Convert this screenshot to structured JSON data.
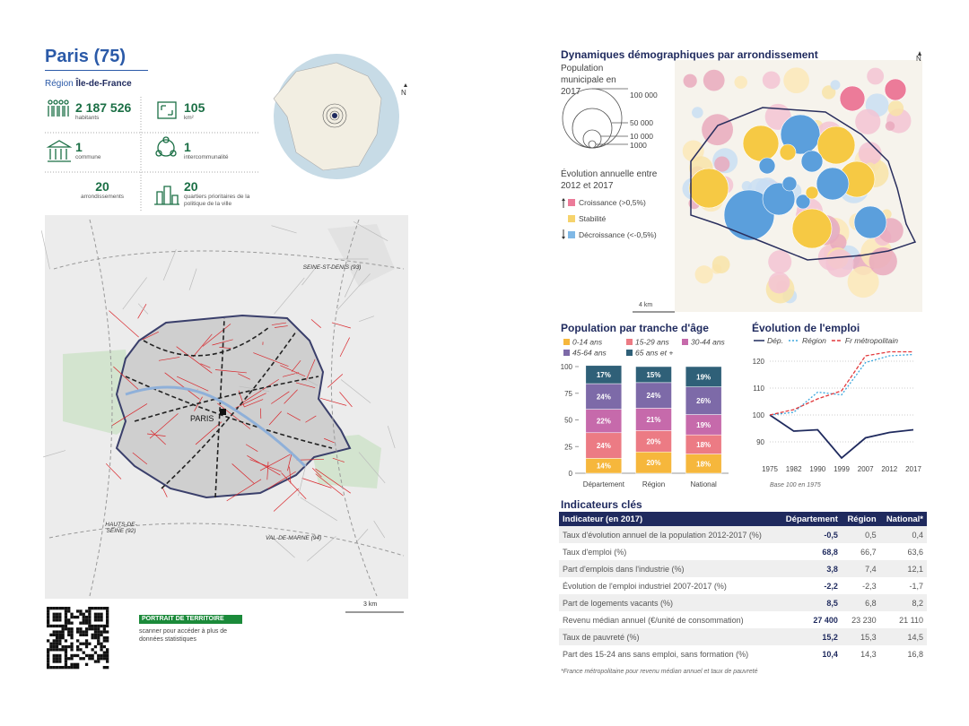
{
  "header": {
    "title": "Paris (75)",
    "region_label": "Région",
    "region": "Île-de-France"
  },
  "stats": [
    {
      "value": "2 187 526",
      "label": "habitants"
    },
    {
      "value": "105",
      "label": "km²"
    },
    {
      "value": "1",
      "label": "commune"
    },
    {
      "value": "1",
      "label": "intercommunalité"
    },
    {
      "value": "20",
      "label": "arrondissements"
    },
    {
      "value": "20",
      "label": "quartiers prioritaires de la politique de la ville"
    }
  ],
  "north": "N",
  "map": {
    "labels": [
      "SEINE-ST-DENIS (93)",
      "PARIS",
      "HAUTS-DE-SEINE (92)",
      "VAL-DE-MARNE (94)"
    ],
    "scale": "3 km"
  },
  "footer": {
    "badge": "PORTRAIT DE TERRITOIRE",
    "text": "scanner pour accéder à plus de données statistiques"
  },
  "demo_map": {
    "title": "Dynamiques démographiques par arrondissement",
    "size_title": "Population municipale en 2017",
    "sizes": [
      "100 000",
      "50 000",
      "10 000",
      "1000"
    ],
    "color_title": "Évolution annuelle entre 2012 et 2017",
    "colors": [
      "Croissance (>0,5%)",
      "Stabilité",
      "Décroissance (<-0,5%)"
    ],
    "scale": "4 km",
    "north": "N"
  },
  "chart_data": [
    {
      "type": "stacked_bar",
      "title": "Population par tranche d'âge",
      "categories": [
        "Département",
        "Région",
        "National"
      ],
      "series": [
        {
          "name": "0-14 ans",
          "color": "#f6b73c",
          "values": [
            14,
            20,
            18
          ],
          "value_labels": [
            "14%",
            "20%",
            "18%"
          ]
        },
        {
          "name": "15-29 ans",
          "color": "#ec7b84",
          "values": [
            24,
            20,
            18
          ],
          "value_labels": [
            "24%",
            "20%",
            "18%"
          ]
        },
        {
          "name": "30-44 ans",
          "color": "#c66aab",
          "values": [
            22,
            21,
            19
          ],
          "value_labels": [
            "22%",
            "21%",
            "19%"
          ]
        },
        {
          "name": "45-64 ans",
          "color": "#7d6aa8",
          "values": [
            24,
            24,
            26
          ],
          "value_labels": [
            "24%",
            "24%",
            "26%"
          ]
        },
        {
          "name": "65 ans et +",
          "color": "#2f6078",
          "values": [
            17,
            15,
            19
          ],
          "value_labels": [
            "17%",
            "15%",
            "19%"
          ]
        }
      ],
      "ylim": [
        0,
        100
      ],
      "yticks": [
        0,
        25,
        50,
        75,
        100
      ]
    },
    {
      "type": "line",
      "title": "Évolution de l'emploi",
      "categories": [
        "1975",
        "1982",
        "1990",
        "1999",
        "2007",
        "2012",
        "2017"
      ],
      "series": [
        {
          "name": "Dép.",
          "color": "#1f2a5e",
          "style": "solid",
          "values": [
            100,
            94,
            94.5,
            84,
            91.5,
            93.5,
            94.5
          ]
        },
        {
          "name": "Région",
          "color": "#3aa6dd",
          "style": "dotted",
          "values": [
            100,
            101,
            108.5,
            107.5,
            119.5,
            122,
            122.5
          ]
        },
        {
          "name": "Fr métropolitain",
          "color": "#e2393c",
          "style": "dashed",
          "values": [
            100,
            102,
            106,
            109,
            122,
            123.5,
            123.5
          ]
        }
      ],
      "ylim": [
        80,
        124
      ],
      "yticks": [
        90,
        100,
        110,
        120
      ],
      "grid": true,
      "note": "Base 100 en 1975"
    }
  ],
  "table": {
    "title": "Indicateurs clés",
    "header": [
      "Indicateur (en 2017)",
      "Département",
      "Région",
      "National*"
    ],
    "rows": [
      [
        "Taux d'évolution annuel de la population 2012-2017 (%)",
        "-0,5",
        "0,5",
        "0,4"
      ],
      [
        "Taux d'emploi (%)",
        "68,8",
        "66,7",
        "63,6"
      ],
      [
        "Part d'emplois dans l'industrie (%)",
        "3,8",
        "7,4",
        "12,1"
      ],
      [
        "Évolution de l'emploi industriel 2007-2017 (%)",
        "-2,2",
        "-2,3",
        "-1,7"
      ],
      [
        "Part de logements vacants (%)",
        "8,5",
        "6,8",
        "8,2"
      ],
      [
        "Revenu médian annuel (€/unité de consommation)",
        "27 400",
        "23 230",
        "21 110"
      ],
      [
        "Taux de pauvreté (%)",
        "15,2",
        "15,3",
        "14,5"
      ],
      [
        "Part des 15-24 ans sans emploi, sans formation (%)",
        "10,4",
        "14,3",
        "16,8"
      ]
    ],
    "note": "*France métropolitaine pour revenu médian annuel et taux de pauvreté"
  }
}
